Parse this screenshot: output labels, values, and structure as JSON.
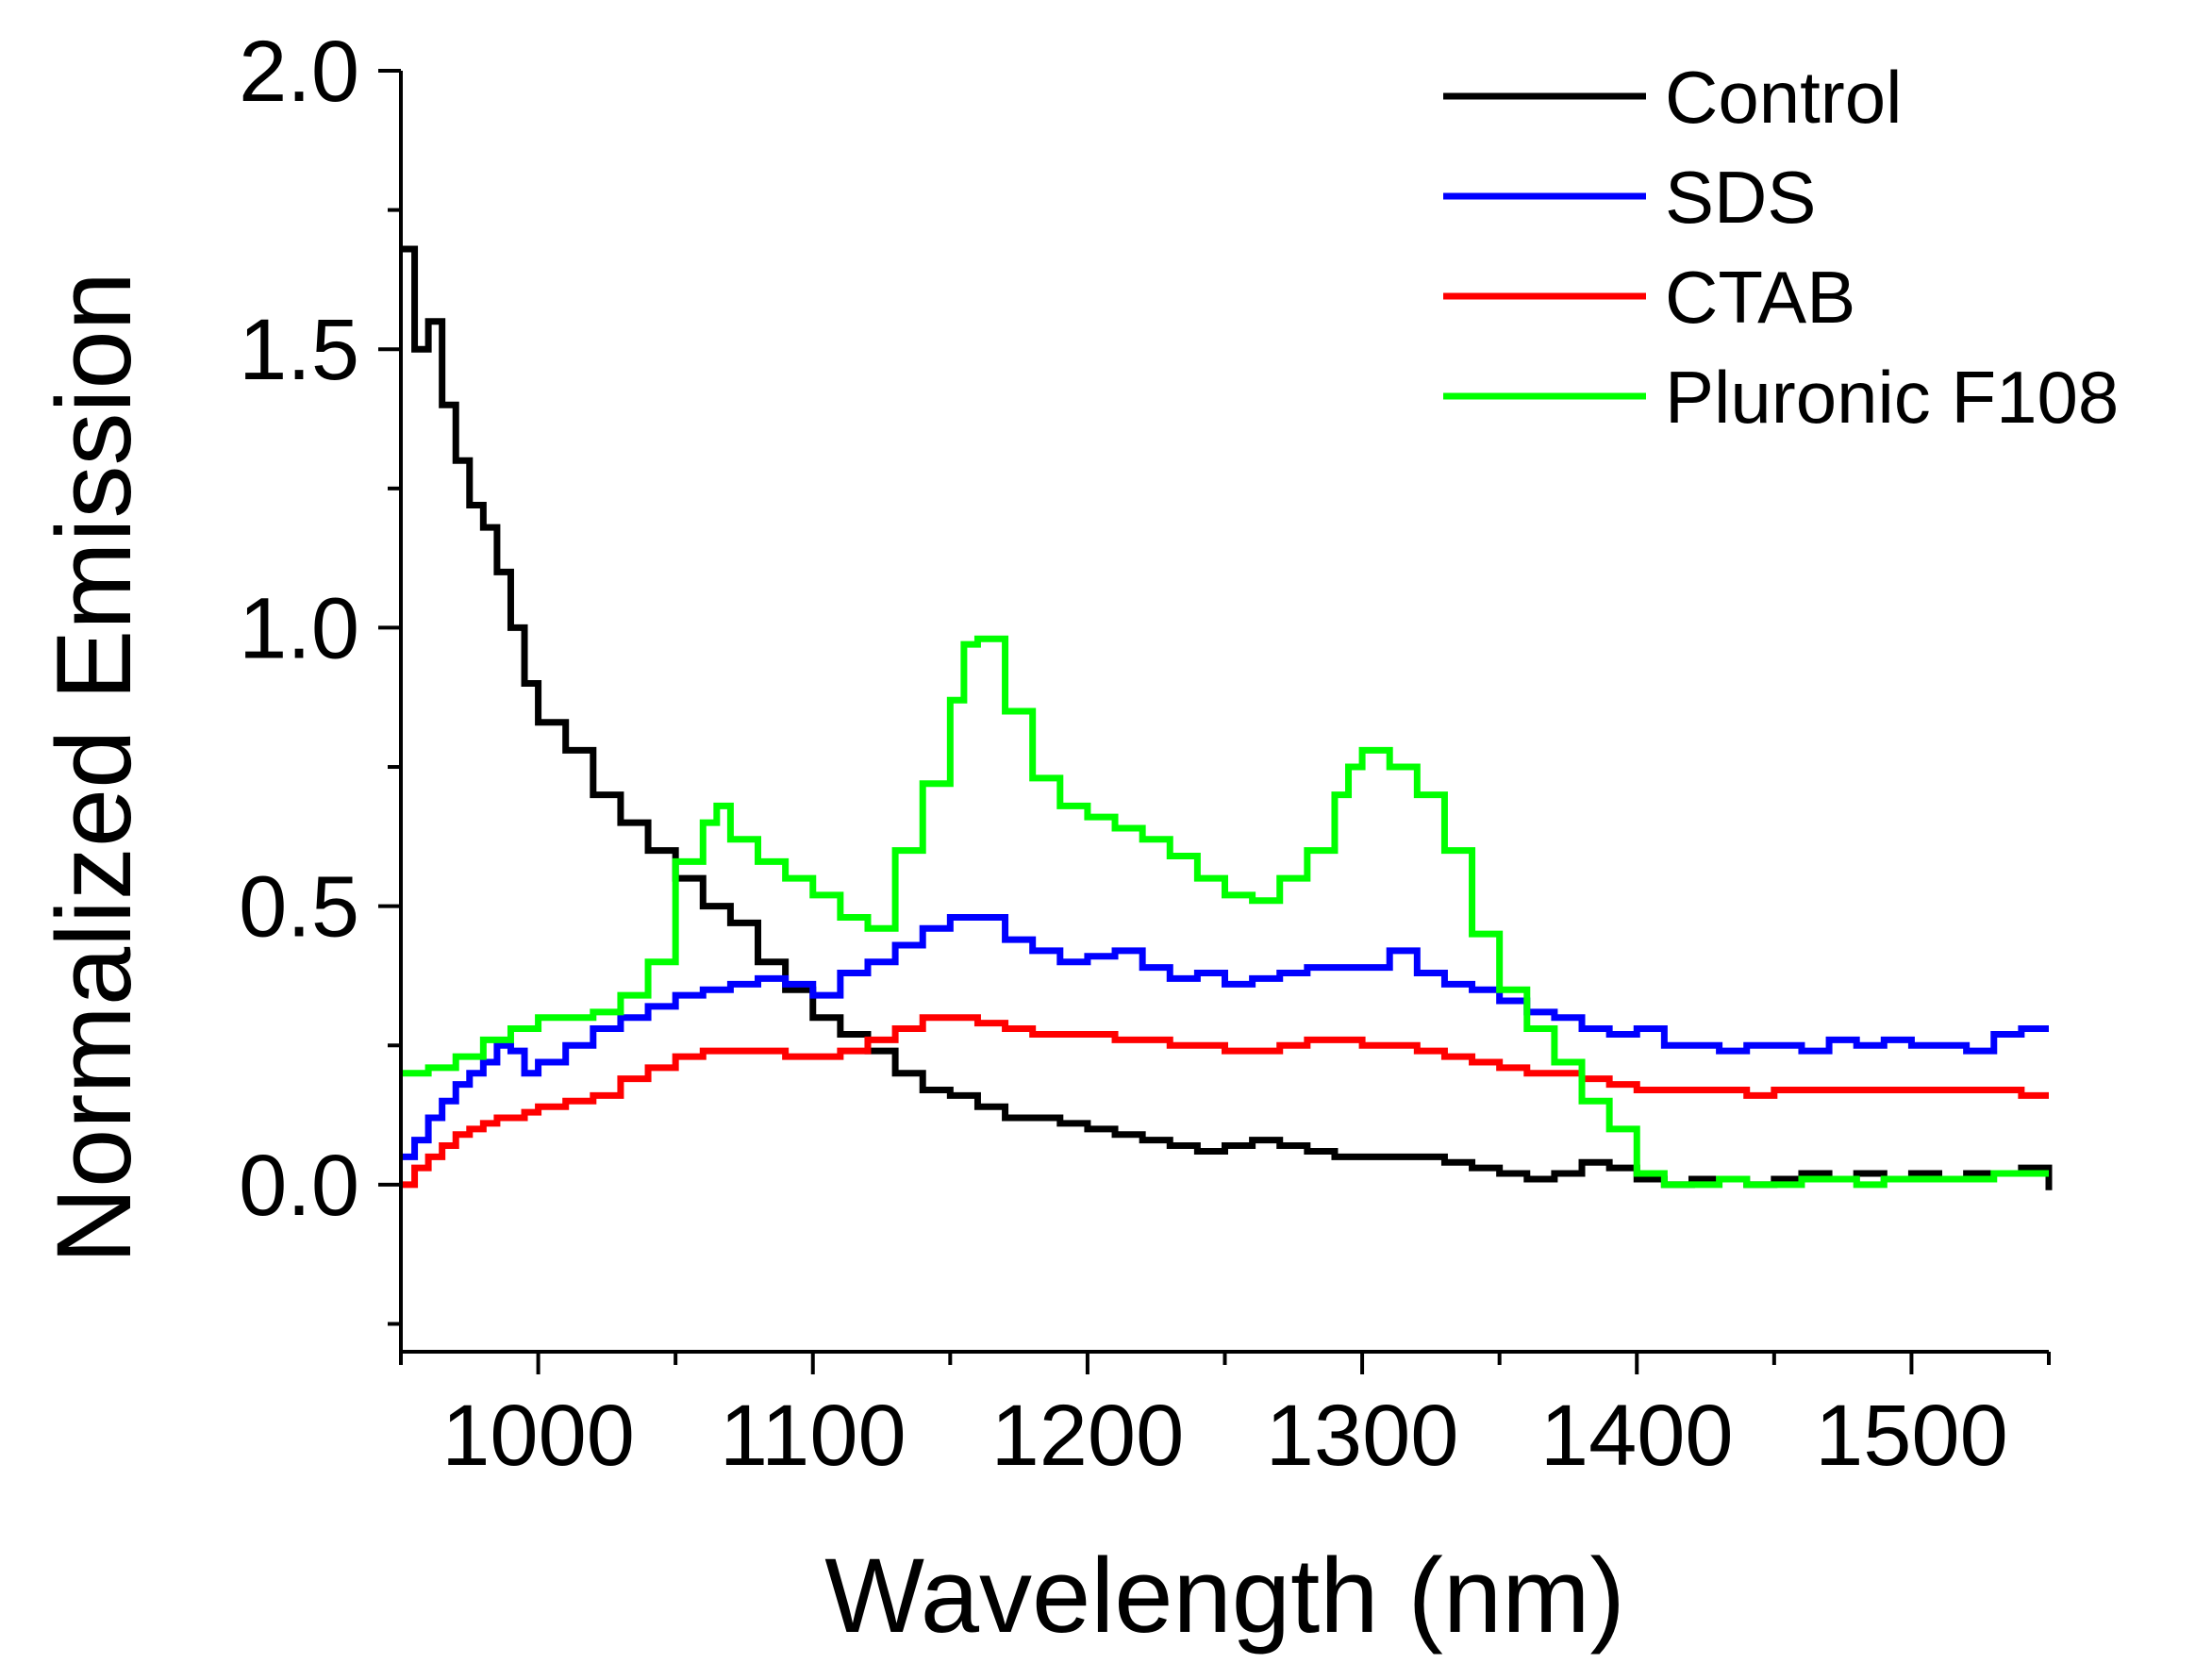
{
  "chart_data": {
    "type": "line",
    "title": "",
    "xlabel": "Wavelength (nm)",
    "ylabel": "Normalized Emission",
    "xlim": [
      950,
      1550
    ],
    "ylim": [
      -0.3,
      2.0
    ],
    "x_ticks": [
      1000,
      1100,
      1200,
      1300,
      1400,
      1500
    ],
    "x_tick_labels": [
      "1000",
      "1100",
      "1200",
      "1300",
      "1400",
      "1500"
    ],
    "y_ticks": [
      0.0,
      0.5,
      1.0,
      1.5,
      2.0
    ],
    "y_tick_labels": [
      "0.0",
      "0.5",
      "1.0",
      "1.5",
      "2.0"
    ],
    "grid": false,
    "legend_position": "top-right",
    "step_style": true,
    "series": [
      {
        "name": "Control",
        "color": "#000000",
        "x": [
          950,
          955,
          960,
          965,
          970,
          975,
          980,
          985,
          990,
          995,
          1000,
          1010,
          1020,
          1030,
          1040,
          1050,
          1060,
          1070,
          1080,
          1090,
          1100,
          1110,
          1120,
          1130,
          1140,
          1150,
          1160,
          1170,
          1180,
          1190,
          1200,
          1210,
          1220,
          1230,
          1240,
          1250,
          1260,
          1270,
          1280,
          1290,
          1300,
          1310,
          1320,
          1330,
          1340,
          1350,
          1360,
          1370,
          1380,
          1390,
          1400,
          1410,
          1420,
          1430,
          1440,
          1450,
          1460,
          1470,
          1480,
          1490,
          1500,
          1510,
          1520,
          1530,
          1540,
          1550
        ],
        "values": [
          1.68,
          1.5,
          1.55,
          1.4,
          1.3,
          1.22,
          1.18,
          1.1,
          1.0,
          0.9,
          0.83,
          0.78,
          0.7,
          0.65,
          0.6,
          0.55,
          0.5,
          0.47,
          0.4,
          0.35,
          0.3,
          0.27,
          0.24,
          0.2,
          0.17,
          0.16,
          0.14,
          0.12,
          0.12,
          0.11,
          0.1,
          0.09,
          0.08,
          0.07,
          0.06,
          0.07,
          0.08,
          0.07,
          0.06,
          0.05,
          0.05,
          0.05,
          0.05,
          0.04,
          0.03,
          0.02,
          0.01,
          0.02,
          0.04,
          0.03,
          0.01,
          0.0,
          0.01,
          0.01,
          0.0,
          0.01,
          0.02,
          0.01,
          0.02,
          0.01,
          0.02,
          0.01,
          0.02,
          0.02,
          0.03,
          -0.01
        ]
      },
      {
        "name": "SDS",
        "color": "#0000ff",
        "x": [
          950,
          955,
          960,
          965,
          970,
          975,
          980,
          985,
          990,
          995,
          1000,
          1010,
          1020,
          1030,
          1040,
          1050,
          1060,
          1070,
          1080,
          1090,
          1100,
          1110,
          1120,
          1130,
          1140,
          1150,
          1160,
          1170,
          1180,
          1190,
          1200,
          1210,
          1220,
          1230,
          1240,
          1250,
          1260,
          1270,
          1280,
          1290,
          1300,
          1310,
          1320,
          1330,
          1340,
          1350,
          1360,
          1370,
          1380,
          1390,
          1400,
          1410,
          1420,
          1430,
          1440,
          1450,
          1460,
          1470,
          1480,
          1490,
          1500,
          1510,
          1520,
          1530,
          1540,
          1550
        ],
        "values": [
          0.05,
          0.08,
          0.12,
          0.15,
          0.18,
          0.2,
          0.22,
          0.25,
          0.24,
          0.2,
          0.22,
          0.25,
          0.28,
          0.3,
          0.32,
          0.34,
          0.35,
          0.36,
          0.37,
          0.36,
          0.34,
          0.38,
          0.4,
          0.43,
          0.46,
          0.48,
          0.48,
          0.44,
          0.42,
          0.4,
          0.41,
          0.42,
          0.39,
          0.37,
          0.38,
          0.36,
          0.37,
          0.38,
          0.39,
          0.39,
          0.39,
          0.42,
          0.38,
          0.36,
          0.35,
          0.33,
          0.31,
          0.3,
          0.28,
          0.27,
          0.28,
          0.25,
          0.25,
          0.24,
          0.25,
          0.25,
          0.24,
          0.26,
          0.25,
          0.26,
          0.25,
          0.25,
          0.24,
          0.27,
          0.28,
          0.28
        ]
      },
      {
        "name": "CTAB",
        "color": "#ff0000",
        "x": [
          950,
          955,
          960,
          965,
          970,
          975,
          980,
          985,
          990,
          995,
          1000,
          1010,
          1020,
          1030,
          1040,
          1050,
          1060,
          1070,
          1080,
          1090,
          1100,
          1110,
          1120,
          1130,
          1140,
          1150,
          1160,
          1170,
          1180,
          1190,
          1200,
          1210,
          1220,
          1230,
          1240,
          1250,
          1260,
          1270,
          1280,
          1290,
          1300,
          1310,
          1320,
          1330,
          1340,
          1350,
          1360,
          1370,
          1380,
          1390,
          1400,
          1410,
          1420,
          1430,
          1440,
          1450,
          1460,
          1470,
          1480,
          1490,
          1500,
          1510,
          1520,
          1530,
          1540,
          1550
        ],
        "values": [
          0.0,
          0.03,
          0.05,
          0.07,
          0.09,
          0.1,
          0.11,
          0.12,
          0.12,
          0.13,
          0.14,
          0.15,
          0.16,
          0.19,
          0.21,
          0.23,
          0.24,
          0.24,
          0.24,
          0.23,
          0.23,
          0.24,
          0.26,
          0.28,
          0.3,
          0.3,
          0.29,
          0.28,
          0.27,
          0.27,
          0.27,
          0.26,
          0.26,
          0.25,
          0.25,
          0.24,
          0.24,
          0.25,
          0.26,
          0.26,
          0.25,
          0.25,
          0.24,
          0.23,
          0.22,
          0.21,
          0.2,
          0.2,
          0.19,
          0.18,
          0.17,
          0.17,
          0.17,
          0.17,
          0.16,
          0.17,
          0.17,
          0.17,
          0.17,
          0.17,
          0.17,
          0.17,
          0.17,
          0.17,
          0.16,
          0.16
        ]
      },
      {
        "name": "Pluronic F108",
        "color": "#00ff00",
        "x": [
          950,
          960,
          970,
          980,
          990,
          1000,
          1010,
          1020,
          1030,
          1040,
          1050,
          1060,
          1065,
          1070,
          1080,
          1090,
          1100,
          1110,
          1120,
          1130,
          1140,
          1150,
          1155,
          1160,
          1170,
          1180,
          1190,
          1200,
          1210,
          1220,
          1230,
          1240,
          1250,
          1260,
          1270,
          1280,
          1290,
          1295,
          1300,
          1305,
          1310,
          1320,
          1330,
          1340,
          1350,
          1360,
          1370,
          1380,
          1390,
          1400,
          1410,
          1420,
          1430,
          1440,
          1450,
          1460,
          1470,
          1480,
          1490,
          1500,
          1510,
          1520,
          1530,
          1540,
          1550
        ],
        "values": [
          0.2,
          0.21,
          0.23,
          0.26,
          0.28,
          0.3,
          0.3,
          0.31,
          0.34,
          0.4,
          0.58,
          0.65,
          0.68,
          0.62,
          0.58,
          0.55,
          0.52,
          0.48,
          0.46,
          0.6,
          0.72,
          0.87,
          0.97,
          0.98,
          0.85,
          0.73,
          0.68,
          0.66,
          0.64,
          0.62,
          0.59,
          0.55,
          0.52,
          0.51,
          0.55,
          0.6,
          0.7,
          0.75,
          0.78,
          0.78,
          0.75,
          0.7,
          0.6,
          0.45,
          0.35,
          0.28,
          0.22,
          0.15,
          0.1,
          0.02,
          0.0,
          0.0,
          0.01,
          0.0,
          0.0,
          0.01,
          0.01,
          0.0,
          0.01,
          0.01,
          0.01,
          0.01,
          0.02,
          0.02,
          0.02
        ]
      }
    ]
  }
}
